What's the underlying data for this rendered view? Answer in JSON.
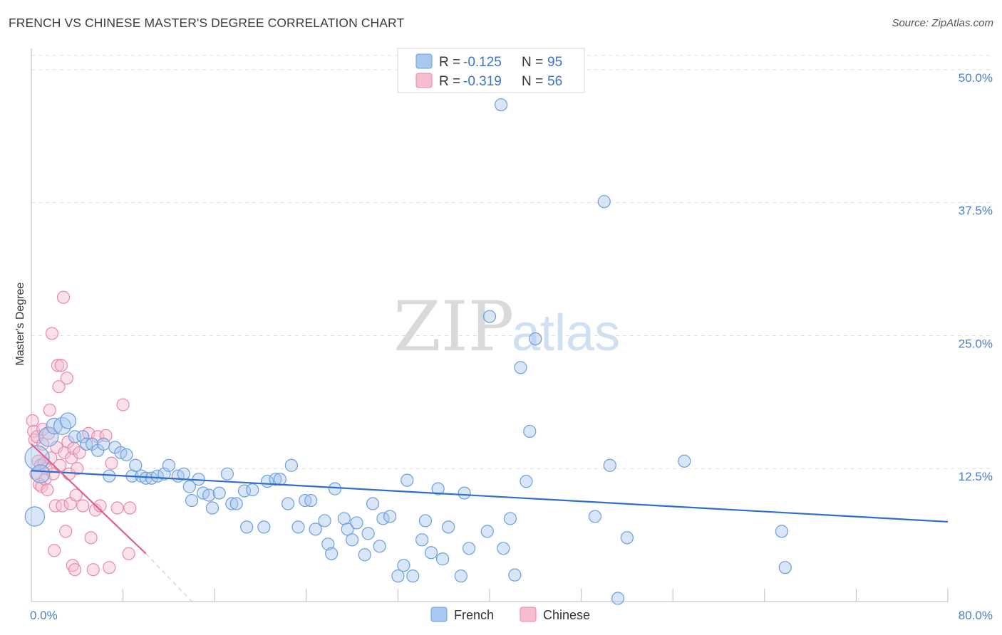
{
  "title": "FRENCH VS CHINESE MASTER'S DEGREE CORRELATION CHART",
  "source": "Source: ZipAtlas.com",
  "watermark": {
    "zip": "ZIP",
    "atlas": "atlas"
  },
  "colors": {
    "french_fill": "#a9c8ef",
    "french_stroke": "#6a9fde",
    "french_line": "#2f6fc9",
    "chinese_fill": "#f6bcd0",
    "chinese_stroke": "#e889a9",
    "chinese_line": "#e0608d",
    "grid": "#dddddd",
    "axis_label": "#4a7fc9"
  },
  "legend": {
    "rows": [
      {
        "r_label": "R =",
        "r_value": "-0.125",
        "n_label": "N =",
        "n_value": "95"
      },
      {
        "r_label": "R =",
        "r_value": "-0.319",
        "n_label": "N =",
        "n_value": "56"
      }
    ]
  },
  "bottom_legend": {
    "french": "French",
    "chinese": "Chinese"
  },
  "chart_data": {
    "type": "scatter",
    "title": "FRENCH VS CHINESE MASTER'S DEGREE CORRELATION CHART",
    "xlabel": "",
    "ylabel": "Master's Degree",
    "xlim": [
      0,
      80
    ],
    "ylim": [
      0,
      52
    ],
    "x_tick_labels": [
      "0.0%",
      "80.0%"
    ],
    "y_ticks": [
      12.5,
      25.0,
      37.5,
      50.0
    ],
    "y_tick_labels": [
      "12.5%",
      "25.0%",
      "37.5%",
      "50.0%"
    ],
    "series": [
      {
        "name": "French",
        "r": -0.125,
        "n": 95,
        "trend": {
          "x": [
            0,
            80
          ],
          "y": [
            12.3,
            7.5
          ]
        },
        "points": [
          [
            0.3,
            8.0,
            1.6
          ],
          [
            0.5,
            13.5,
            2.0
          ],
          [
            0.8,
            12.0,
            1.5
          ],
          [
            1.5,
            15.5,
            1.6
          ],
          [
            2.0,
            16.5,
            1.3
          ],
          [
            2.7,
            16.5,
            1.4
          ],
          [
            3.2,
            17.0,
            1.3
          ],
          [
            3.8,
            15.5,
            1.0
          ],
          [
            4.5,
            15.5,
            1.0
          ],
          [
            4.8,
            14.8,
            1.0
          ],
          [
            5.3,
            14.8,
            1.0
          ],
          [
            5.8,
            14.2,
            1.0
          ],
          [
            6.3,
            14.8,
            1.0
          ],
          [
            6.8,
            11.8,
            1.0
          ],
          [
            7.3,
            14.5,
            1.0
          ],
          [
            7.8,
            14.0,
            1.0
          ],
          [
            8.3,
            13.8,
            1.0
          ],
          [
            8.8,
            11.8,
            1.0
          ],
          [
            9.1,
            12.8,
            1.0
          ],
          [
            9.6,
            11.8,
            1.0
          ],
          [
            10.0,
            11.6,
            1.0
          ],
          [
            10.5,
            11.6,
            1.0
          ],
          [
            11.0,
            11.8,
            1.0
          ],
          [
            11.6,
            12.0,
            1.0
          ],
          [
            12.0,
            12.8,
            1.0
          ],
          [
            12.8,
            11.8,
            1.0
          ],
          [
            13.3,
            12.0,
            1.0
          ],
          [
            13.8,
            10.8,
            1.0
          ],
          [
            14.0,
            9.5,
            1.0
          ],
          [
            14.6,
            11.5,
            1.0
          ],
          [
            15.0,
            10.2,
            1.0
          ],
          [
            15.5,
            10.0,
            1.0
          ],
          [
            15.8,
            8.8,
            1.0
          ],
          [
            16.4,
            10.2,
            1.0
          ],
          [
            17.1,
            12.0,
            1.0
          ],
          [
            17.5,
            9.2,
            1.0
          ],
          [
            17.9,
            9.2,
            1.0
          ],
          [
            18.6,
            10.4,
            1.0
          ],
          [
            18.8,
            7.0,
            1.0
          ],
          [
            19.3,
            10.5,
            1.0
          ],
          [
            20.3,
            7.0,
            1.0
          ],
          [
            20.6,
            11.3,
            1.0
          ],
          [
            21.3,
            11.5,
            1.0
          ],
          [
            21.7,
            11.5,
            1.0
          ],
          [
            22.4,
            9.2,
            1.0
          ],
          [
            22.7,
            12.8,
            1.0
          ],
          [
            23.3,
            7.0,
            1.0
          ],
          [
            23.9,
            9.5,
            1.0
          ],
          [
            24.4,
            9.5,
            1.0
          ],
          [
            24.8,
            6.8,
            1.0
          ],
          [
            25.6,
            7.6,
            1.0
          ],
          [
            25.9,
            5.4,
            1.0
          ],
          [
            26.2,
            4.5,
            1.0
          ],
          [
            26.5,
            10.6,
            1.0
          ],
          [
            27.3,
            7.8,
            1.0
          ],
          [
            27.6,
            6.8,
            1.0
          ],
          [
            28.0,
            5.8,
            1.0
          ],
          [
            28.4,
            7.4,
            1.0
          ],
          [
            29.1,
            4.4,
            1.0
          ],
          [
            29.4,
            6.4,
            1.0
          ],
          [
            29.8,
            9.2,
            1.0
          ],
          [
            30.4,
            5.2,
            1.0
          ],
          [
            30.7,
            7.8,
            1.0
          ],
          [
            31.3,
            8.0,
            1.0
          ],
          [
            32.0,
            2.4,
            1.0
          ],
          [
            32.5,
            3.4,
            1.0
          ],
          [
            32.8,
            11.4,
            1.0
          ],
          [
            33.3,
            2.4,
            1.0
          ],
          [
            34.1,
            5.8,
            1.0
          ],
          [
            34.4,
            7.6,
            1.0
          ],
          [
            34.9,
            4.6,
            1.0
          ],
          [
            35.5,
            10.6,
            1.0
          ],
          [
            35.9,
            4.0,
            1.0
          ],
          [
            36.4,
            7.0,
            1.0
          ],
          [
            37.5,
            2.4,
            1.0
          ],
          [
            37.8,
            10.2,
            1.0
          ],
          [
            38.2,
            5.0,
            1.0
          ],
          [
            39.8,
            6.6,
            1.0
          ],
          [
            40.0,
            26.8,
            1.0
          ],
          [
            41.0,
            46.7,
            1.0
          ],
          [
            41.2,
            5.0,
            1.0
          ],
          [
            41.8,
            7.8,
            1.0
          ],
          [
            42.2,
            2.5,
            1.0
          ],
          [
            42.7,
            22.0,
            1.0
          ],
          [
            43.2,
            11.3,
            1.0
          ],
          [
            43.5,
            16.0,
            1.0
          ],
          [
            44.0,
            24.7,
            1.0
          ],
          [
            49.2,
            8.0,
            1.0
          ],
          [
            50.0,
            37.6,
            1.0
          ],
          [
            50.5,
            12.8,
            1.0
          ],
          [
            51.2,
            0.3,
            1.0
          ],
          [
            52.0,
            6.0,
            1.0
          ],
          [
            57.0,
            13.2,
            1.0
          ],
          [
            65.5,
            6.6,
            1.0
          ],
          [
            65.8,
            3.2,
            1.0
          ]
        ]
      },
      {
        "name": "Chinese",
        "r": -0.319,
        "n": 56,
        "trend": {
          "x": [
            0,
            10
          ],
          "y": [
            14.8,
            4.5
          ]
        },
        "trend_dashed": {
          "x": [
            10,
            14
          ],
          "y": [
            4.5,
            0.0
          ]
        },
        "points": [
          [
            0.1,
            17.0
          ],
          [
            0.2,
            16.0
          ],
          [
            0.3,
            15.2
          ],
          [
            0.4,
            12.0
          ],
          [
            0.5,
            15.5
          ],
          [
            0.6,
            13.2
          ],
          [
            0.7,
            11.0
          ],
          [
            0.8,
            12.8
          ],
          [
            0.9,
            10.8
          ],
          [
            1.0,
            16.2
          ],
          [
            1.0,
            14.8
          ],
          [
            1.1,
            13.0
          ],
          [
            1.2,
            11.5
          ],
          [
            1.3,
            12.5
          ],
          [
            1.4,
            10.5
          ],
          [
            1.5,
            15.8
          ],
          [
            1.6,
            18.0
          ],
          [
            1.7,
            13.5
          ],
          [
            1.8,
            25.2
          ],
          [
            1.9,
            12.0
          ],
          [
            2.0,
            4.8
          ],
          [
            2.1,
            9.0
          ],
          [
            2.2,
            14.5
          ],
          [
            2.3,
            22.2
          ],
          [
            2.4,
            20.2
          ],
          [
            2.5,
            12.8
          ],
          [
            2.6,
            22.2
          ],
          [
            2.7,
            9.0
          ],
          [
            2.8,
            28.6
          ],
          [
            2.9,
            14.0
          ],
          [
            3.0,
            6.6
          ],
          [
            3.1,
            21.0
          ],
          [
            3.2,
            15.0
          ],
          [
            3.3,
            12.0
          ],
          [
            3.4,
            9.2
          ],
          [
            3.5,
            13.5
          ],
          [
            3.6,
            3.4
          ],
          [
            3.7,
            14.4
          ],
          [
            3.8,
            3.0
          ],
          [
            3.9,
            10.0
          ],
          [
            4.0,
            12.5
          ],
          [
            4.2,
            14.0
          ],
          [
            4.5,
            9.0
          ],
          [
            5.0,
            15.8
          ],
          [
            5.2,
            6.0
          ],
          [
            5.4,
            3.0
          ],
          [
            5.6,
            8.6
          ],
          [
            5.8,
            15.5
          ],
          [
            6.0,
            9.0
          ],
          [
            6.5,
            15.6
          ],
          [
            6.8,
            3.2
          ],
          [
            7.0,
            13.0
          ],
          [
            7.5,
            8.8
          ],
          [
            8.0,
            18.5
          ],
          [
            8.5,
            4.5
          ],
          [
            8.6,
            8.8
          ]
        ]
      }
    ]
  }
}
